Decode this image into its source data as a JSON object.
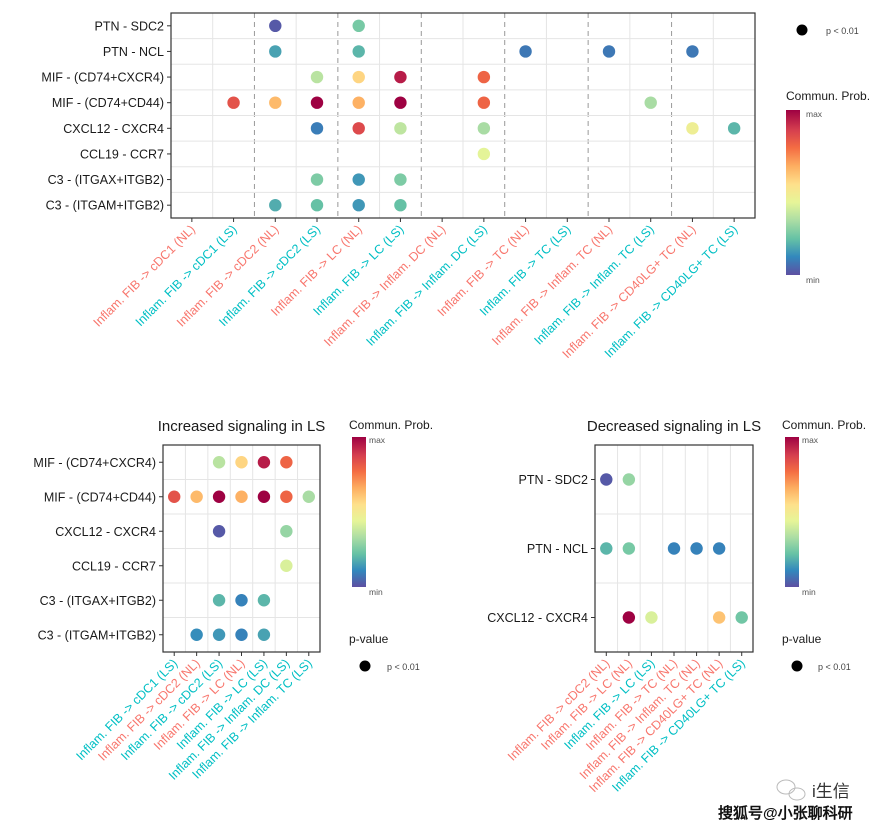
{
  "colors": {
    "NL": "#F8766D",
    "LS": "#00BFC4",
    "palette": [
      "#5E4FA2",
      "#3288BD",
      "#66C2A5",
      "#ABDDA4",
      "#E6F598",
      "#FEE08B",
      "#FDAE61",
      "#F46D43",
      "#D53E4F",
      "#9E0142"
    ]
  },
  "legend": {
    "pvalue_title": "p-value",
    "pvalue_label": "p < 0.01",
    "color_title": "Commun. Prob.",
    "max_label": "max",
    "min_label": "min"
  },
  "watermark": {
    "brand": "i生信",
    "line": "搜狐号@小张聊科研"
  },
  "chart_data": [
    {
      "type": "scatter",
      "title": "",
      "color_scale": "Spectral (reversed), min to max, values normalized 0-1",
      "y_categories": [
        "PTN - SDC2",
        "PTN - NCL",
        "MIF - (CD74+CXCR4)",
        "MIF - (CD74+CD44)",
        "CXCL12 - CXCR4",
        "CCL19 - CCR7",
        "C3 - (ITGAX+ITGB2)",
        "C3 - (ITGAM+ITGB2)"
      ],
      "x_categories": [
        {
          "label": "Inflam. FIB -> cDC1 (NL)",
          "group": "NL"
        },
        {
          "label": "Inflam. FIB -> cDC1 (LS)",
          "group": "LS"
        },
        {
          "label": "Inflam. FIB -> cDC2 (NL)",
          "group": "NL"
        },
        {
          "label": "Inflam. FIB -> cDC2 (LS)",
          "group": "LS"
        },
        {
          "label": "Inflam. FIB -> LC (NL)",
          "group": "NL"
        },
        {
          "label": "Inflam. FIB -> LC (LS)",
          "group": "LS"
        },
        {
          "label": "Inflam. FIB -> Inflam. DC (NL)",
          "group": "NL"
        },
        {
          "label": "Inflam. FIB -> Inflam. DC (LS)",
          "group": "LS"
        },
        {
          "label": "Inflam. FIB -> TC (NL)",
          "group": "NL"
        },
        {
          "label": "Inflam. FIB -> TC (LS)",
          "group": "LS"
        },
        {
          "label": "Inflam. FIB -> Inflam. TC (NL)",
          "group": "NL"
        },
        {
          "label": "Inflam. FIB -> Inflam. TC (LS)",
          "group": "LS"
        },
        {
          "label": "Inflam. FIB -> CD40LG+ TC (NL)",
          "group": "NL"
        },
        {
          "label": "Inflam. FIB -> CD40LG+ TC (LS)",
          "group": "LS"
        }
      ],
      "grid": true,
      "group_separators": "dashed, between each NL/LS pair",
      "points": [
        {
          "y": 0,
          "x": 2,
          "value": 0.02
        },
        {
          "y": 0,
          "x": 4,
          "value": 0.25
        },
        {
          "y": 1,
          "x": 2,
          "value": 0.16
        },
        {
          "y": 1,
          "x": 4,
          "value": 0.2
        },
        {
          "y": 1,
          "x": 8,
          "value": 0.08
        },
        {
          "y": 1,
          "x": 10,
          "value": 0.08
        },
        {
          "y": 1,
          "x": 12,
          "value": 0.08
        },
        {
          "y": 2,
          "x": 3,
          "value": 0.36
        },
        {
          "y": 2,
          "x": 4,
          "value": 0.58
        },
        {
          "y": 2,
          "x": 5,
          "value": 0.95
        },
        {
          "y": 2,
          "x": 7,
          "value": 0.8
        },
        {
          "y": 3,
          "x": 1,
          "value": 0.84
        },
        {
          "y": 3,
          "x": 2,
          "value": 0.64
        },
        {
          "y": 3,
          "x": 3,
          "value": 1.0
        },
        {
          "y": 3,
          "x": 4,
          "value": 0.66
        },
        {
          "y": 3,
          "x": 5,
          "value": 1.0
        },
        {
          "y": 3,
          "x": 7,
          "value": 0.8
        },
        {
          "y": 3,
          "x": 11,
          "value": 0.33
        },
        {
          "y": 4,
          "x": 3,
          "value": 0.09
        },
        {
          "y": 4,
          "x": 4,
          "value": 0.86
        },
        {
          "y": 4,
          "x": 5,
          "value": 0.37
        },
        {
          "y": 4,
          "x": 7,
          "value": 0.33
        },
        {
          "y": 4,
          "x": 12,
          "value": 0.48
        },
        {
          "y": 4,
          "x": 13,
          "value": 0.2
        },
        {
          "y": 5,
          "x": 7,
          "value": 0.44
        },
        {
          "y": 6,
          "x": 3,
          "value": 0.26
        },
        {
          "y": 6,
          "x": 4,
          "value": 0.14
        },
        {
          "y": 6,
          "x": 5,
          "value": 0.26
        },
        {
          "y": 7,
          "x": 2,
          "value": 0.18
        },
        {
          "y": 7,
          "x": 3,
          "value": 0.22
        },
        {
          "y": 7,
          "x": 4,
          "value": 0.14
        },
        {
          "y": 7,
          "x": 5,
          "value": 0.22
        }
      ]
    },
    {
      "type": "scatter",
      "title": "Increased signaling in LS",
      "color_scale": "Spectral (reversed), min to max, values normalized 0-1",
      "y_categories": [
        "MIF - (CD74+CXCR4)",
        "MIF - (CD74+CD44)",
        "CXCL12 - CXCR4",
        "CCL19 - CCR7",
        "C3 - (ITGAX+ITGB2)",
        "C3 - (ITGAM+ITGB2)"
      ],
      "x_categories": [
        {
          "label": "Inflam. FIB -> cDC1 (LS)",
          "group": "LS"
        },
        {
          "label": "Inflam. FIB -> cDC2 (NL)",
          "group": "NL"
        },
        {
          "label": "Inflam. FIB -> cDC2 (LS)",
          "group": "LS"
        },
        {
          "label": "Inflam. FIB -> LC (NL)",
          "group": "NL"
        },
        {
          "label": "Inflam. FIB -> LC (LS)",
          "group": "LS"
        },
        {
          "label": "Inflam. FIB -> Inflam. DC (LS)",
          "group": "LS"
        },
        {
          "label": "Inflam. FIB -> Inflam. TC (LS)",
          "group": "LS"
        }
      ],
      "grid": true,
      "points": [
        {
          "y": 0,
          "x": 2,
          "value": 0.36
        },
        {
          "y": 0,
          "x": 3,
          "value": 0.58
        },
        {
          "y": 0,
          "x": 4,
          "value": 0.95
        },
        {
          "y": 0,
          "x": 5,
          "value": 0.8
        },
        {
          "y": 1,
          "x": 0,
          "value": 0.84
        },
        {
          "y": 1,
          "x": 1,
          "value": 0.64
        },
        {
          "y": 1,
          "x": 2,
          "value": 1.0
        },
        {
          "y": 1,
          "x": 3,
          "value": 0.66
        },
        {
          "y": 1,
          "x": 4,
          "value": 1.0
        },
        {
          "y": 1,
          "x": 5,
          "value": 0.8
        },
        {
          "y": 1,
          "x": 6,
          "value": 0.33
        },
        {
          "y": 2,
          "x": 2,
          "value": 0.02
        },
        {
          "y": 2,
          "x": 5,
          "value": 0.3
        },
        {
          "y": 3,
          "x": 5,
          "value": 0.42
        },
        {
          "y": 4,
          "x": 2,
          "value": 0.2
        },
        {
          "y": 4,
          "x": 3,
          "value": 0.1
        },
        {
          "y": 4,
          "x": 4,
          "value": 0.2
        },
        {
          "y": 5,
          "x": 1,
          "value": 0.12
        },
        {
          "y": 5,
          "x": 2,
          "value": 0.14
        },
        {
          "y": 5,
          "x": 3,
          "value": 0.1
        },
        {
          "y": 5,
          "x": 4,
          "value": 0.16
        }
      ]
    },
    {
      "type": "scatter",
      "title": "Decreased signaling in LS",
      "color_scale": "Spectral (reversed), min to max, values normalized 0-1",
      "y_categories": [
        "PTN - SDC2",
        "PTN - NCL",
        "CXCL12 - CXCR4"
      ],
      "x_categories": [
        {
          "label": "Inflam. FIB -> cDC2 (NL)",
          "group": "NL"
        },
        {
          "label": "Inflam. FIB -> LC (NL)",
          "group": "NL"
        },
        {
          "label": "Inflam. FIB -> LC (LS)",
          "group": "LS"
        },
        {
          "label": "Inflam. FIB -> TC (NL)",
          "group": "NL"
        },
        {
          "label": "Inflam. FIB -> Inflam. TC (NL)",
          "group": "NL"
        },
        {
          "label": "Inflam. FIB -> CD40LG+ TC (NL)",
          "group": "NL"
        },
        {
          "label": "Inflam. FIB -> CD40LG+ TC (LS)",
          "group": "LS"
        }
      ],
      "grid": true,
      "points": [
        {
          "y": 0,
          "x": 0,
          "value": 0.02
        },
        {
          "y": 0,
          "x": 1,
          "value": 0.3
        },
        {
          "y": 1,
          "x": 0,
          "value": 0.2
        },
        {
          "y": 1,
          "x": 1,
          "value": 0.25
        },
        {
          "y": 1,
          "x": 3,
          "value": 0.1
        },
        {
          "y": 1,
          "x": 4,
          "value": 0.1
        },
        {
          "y": 1,
          "x": 5,
          "value": 0.1
        },
        {
          "y": 2,
          "x": 1,
          "value": 1.0
        },
        {
          "y": 2,
          "x": 2,
          "value": 0.42
        },
        {
          "y": 2,
          "x": 5,
          "value": 0.62
        },
        {
          "y": 2,
          "x": 6,
          "value": 0.24
        }
      ]
    }
  ]
}
